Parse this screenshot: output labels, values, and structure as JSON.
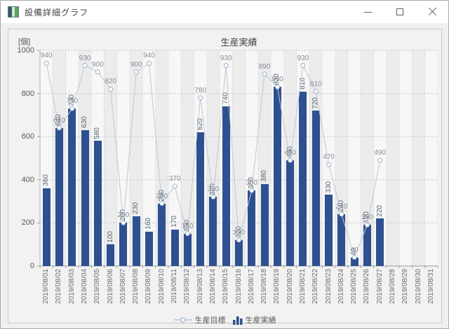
{
  "window": {
    "title": "設備詳細グラフ",
    "controls": {
      "minimize": "minimize",
      "maximize": "maximize",
      "close": "close"
    }
  },
  "chart_data": {
    "type": "bar",
    "title": "生産実績",
    "ylabel": "[個]",
    "ylim": [
      0,
      1000
    ],
    "yticks": [
      0,
      200,
      400,
      600,
      800,
      1000
    ],
    "grid": "dashed",
    "legend_position": "bottom",
    "categories": [
      "2019/08/01",
      "2019/08/02",
      "2019/08/03",
      "2019/08/04",
      "2019/08/05",
      "2019/08/06",
      "2019/08/07",
      "2019/08/08",
      "2019/08/09",
      "2019/08/10",
      "2019/08/11",
      "2019/08/12",
      "2019/08/13",
      "2019/08/14",
      "2019/08/15",
      "2019/08/16",
      "2019/08/17",
      "2019/08/18",
      "2019/08/19",
      "2019/08/20",
      "2019/08/21",
      "2019/08/22",
      "2019/08/23",
      "2019/08/24",
      "2019/08/25",
      "2019/08/26",
      "2019/08/27",
      "2019/08/28",
      "2019/08/29",
      "2019/08/30",
      "2019/08/31"
    ],
    "series": [
      {
        "name": "生産目標",
        "type": "line",
        "color": "#bcc8d6",
        "marker_stroke": "#9db0c6",
        "marker_fill": "#ffffff",
        "values": [
          940,
          640,
          730,
          930,
          900,
          820,
          200,
          900,
          940,
          290,
          370,
          150,
          780,
          320,
          930,
          120,
          350,
          890,
          830,
          490,
          930,
          810,
          470,
          240,
          40,
          190,
          490,
          null,
          null,
          null,
          null
        ]
      },
      {
        "name": "生産実績",
        "type": "bar",
        "color": "#2e5090",
        "values": [
          360,
          640,
          730,
          630,
          580,
          100,
          200,
          230,
          160,
          290,
          170,
          150,
          620,
          320,
          740,
          120,
          350,
          380,
          830,
          490,
          810,
          720,
          330,
          240,
          40,
          190,
          220,
          null,
          null,
          null,
          null
        ]
      }
    ],
    "colors": {
      "stripe_even": "#f7f7f7",
      "stripe_odd": "#ececec",
      "gridline": "#c6c6c6",
      "column_separator": "#cbcbcb",
      "axis": "#9a9a9a"
    }
  }
}
